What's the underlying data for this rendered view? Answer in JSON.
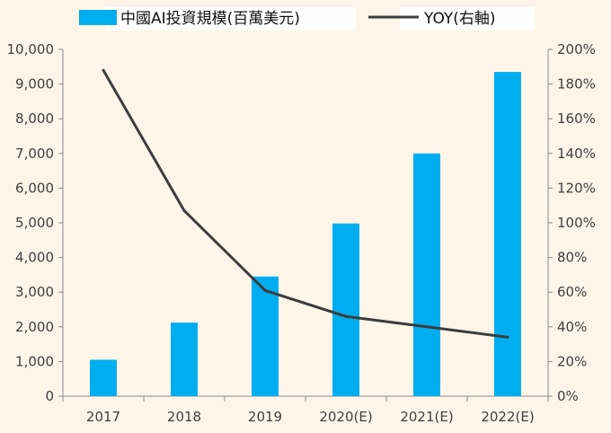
{
  "chart_data": {
    "type": "bar",
    "categories": [
      "2017",
      "2018",
      "2019",
      "2020(E)",
      "2021(E)",
      "2022(E)"
    ],
    "series": [
      {
        "name": "中國AI投資規模(百萬美元)",
        "type": "bar",
        "axis": "left",
        "color": "#00aeef",
        "values": [
          1050,
          2120,
          3450,
          4980,
          7000,
          9350
        ]
      },
      {
        "name": "YOY(右軸)",
        "type": "line",
        "axis": "right",
        "color": "#3d3d3d",
        "values": [
          188,
          107,
          61,
          46,
          40,
          34
        ]
      }
    ],
    "left_axis": {
      "ylim": [
        0,
        10000
      ],
      "ticks": [
        "0",
        "1,000",
        "2,000",
        "3,000",
        "4,000",
        "5,000",
        "6,000",
        "7,000",
        "8,000",
        "9,000",
        "10,000"
      ]
    },
    "right_axis": {
      "ylim": [
        0,
        200
      ],
      "ticks": [
        "0%",
        "20%",
        "40%",
        "60%",
        "80%",
        "100%",
        "120%",
        "140%",
        "160%",
        "180%",
        "200%"
      ]
    },
    "legend_position": "top",
    "grid": false
  }
}
